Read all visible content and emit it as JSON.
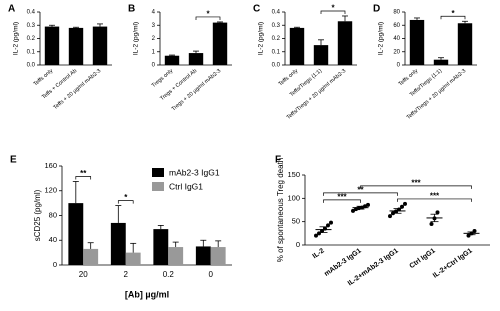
{
  "chart_data": [
    {
      "panel": "A",
      "type": "bar",
      "ylabel": "IL-2 (pg/ml)",
      "color": "#000000",
      "categories": [
        "Teffs only",
        "Teffs + Control Ab",
        "Teffs + 20 µg/ml mAb2-3"
      ],
      "values": [
        0.29,
        0.28,
        0.29
      ],
      "errors": [
        0.01,
        0.005,
        0.02
      ],
      "ylim": [
        0,
        0.4
      ],
      "yticks": [
        {
          "value": 0,
          "label": "0.0"
        },
        0.1,
        0.2,
        0.3,
        0.4
      ]
    },
    {
      "panel": "B",
      "type": "bar",
      "ylabel": "IL-2 (pg/ml)",
      "color": "#000000",
      "categories": [
        "Tregs only",
        "Tregs + Control Ab",
        "Tregs + 20 µg/ml mAb2-3"
      ],
      "values": [
        0.7,
        0.9,
        3.2
      ],
      "errors": [
        0.05,
        0.15,
        0.05
      ],
      "ylim": [
        0,
        4
      ],
      "yticks": [
        0,
        1,
        2,
        3,
        4
      ],
      "annotations": [
        {
          "label": "*",
          "from": "Tregs + Control Ab",
          "to": "Tregs + 20 µg/ml mAb2-3"
        }
      ]
    },
    {
      "panel": "C",
      "type": "bar",
      "ylabel": "IL-2 (pg/ml)",
      "color": "#000000",
      "categories": [
        "Teffs only",
        "Teffs/Tregs (1:1)",
        "Teffs/Tregs + 20 µg/ml mAb2-3"
      ],
      "values": [
        0.28,
        0.15,
        0.33
      ],
      "errors": [
        0.005,
        0.04,
        0.04
      ],
      "ylim": [
        0,
        0.4
      ],
      "yticks": [
        {
          "value": 0,
          "label": "0.0"
        },
        0.1,
        0.2,
        0.3,
        0.4
      ],
      "annotations": [
        {
          "label": "*",
          "from": "Teffs/Tregs (1:1)",
          "to": "Teffs/Tregs + 20 µg/ml mAb2-3"
        }
      ]
    },
    {
      "panel": "D",
      "type": "bar",
      "ylabel": "IL-2 (pg/ml)",
      "color": "#000000",
      "categories": [
        "Teffs only",
        "Teffs/Tregs (1:1)",
        "Teffs/Tregs + 20 µg/ml mAb2-3"
      ],
      "values": [
        68,
        8,
        63
      ],
      "errors": [
        3,
        3,
        3
      ],
      "ylim": [
        0,
        80
      ],
      "yticks": [
        0,
        20,
        40,
        60,
        80
      ],
      "annotations": [
        {
          "label": "*",
          "from": "Teffs/Tregs (1:1)",
          "to": "Teffs/Tregs + 20 µg/ml mAb2-3"
        }
      ]
    },
    {
      "panel": "E",
      "type": "bar",
      "ylabel": "sCD25 (pg/ml)",
      "xlabel": "[Ab] µg/ml",
      "legend": "upper right",
      "categories": [
        "20",
        "2",
        "0.2",
        "0"
      ],
      "series": [
        {
          "name": "mAb2-3 IgG1",
          "color": "#000000",
          "values": [
            100,
            68,
            58,
            30
          ],
          "errors": [
            35,
            28,
            6,
            10
          ]
        },
        {
          "name": "Ctrl IgG1",
          "color": "#999999",
          "values": [
            26,
            20,
            29,
            29
          ],
          "errors": [
            10,
            15,
            8,
            10
          ]
        }
      ],
      "ylim": [
        0,
        160
      ],
      "yticks": [
        0,
        40,
        80,
        120,
        160
      ],
      "annotations": [
        {
          "label": "**",
          "category": "20"
        },
        {
          "label": "*",
          "category": "2"
        }
      ]
    },
    {
      "panel": "F",
      "type": "dot",
      "ylabel": "% of spontaneous Treg death",
      "color": "#000000",
      "categories": [
        "IL-2",
        "mAb2-3 IgG1",
        "IL-2+mAb2-3 IgG1",
        "Ctrl IgG1",
        "IL-2+Ctrl IgG1"
      ],
      "points": [
        [
          20,
          25,
          30,
          35,
          42,
          48
        ],
        [
          73,
          77,
          79,
          80,
          83,
          86
        ],
        [
          62,
          68,
          72,
          76,
          82,
          88
        ],
        [
          45,
          57,
          70
        ],
        [
          20,
          25,
          30
        ]
      ],
      "means": [
        33,
        80,
        73,
        58,
        25
      ],
      "errors": [
        6,
        3,
        5,
        8,
        3
      ],
      "ylim": [
        0,
        150
      ],
      "yticks": [
        0,
        50,
        100,
        150
      ],
      "annotations": [
        {
          "label": "***",
          "from": "IL-2",
          "to": "mAb2-3 IgG1"
        },
        {
          "label": "***",
          "from": "IL-2+mAb2-3 IgG1",
          "to": "IL-2+Ctrl IgG1"
        },
        {
          "label": "**",
          "from": "IL-2",
          "to": "IL-2+mAb2-3 IgG1"
        },
        {
          "label": "***",
          "from": "mAb2-3 IgG1",
          "to": "IL-2+Ctrl IgG1"
        }
      ]
    }
  ]
}
